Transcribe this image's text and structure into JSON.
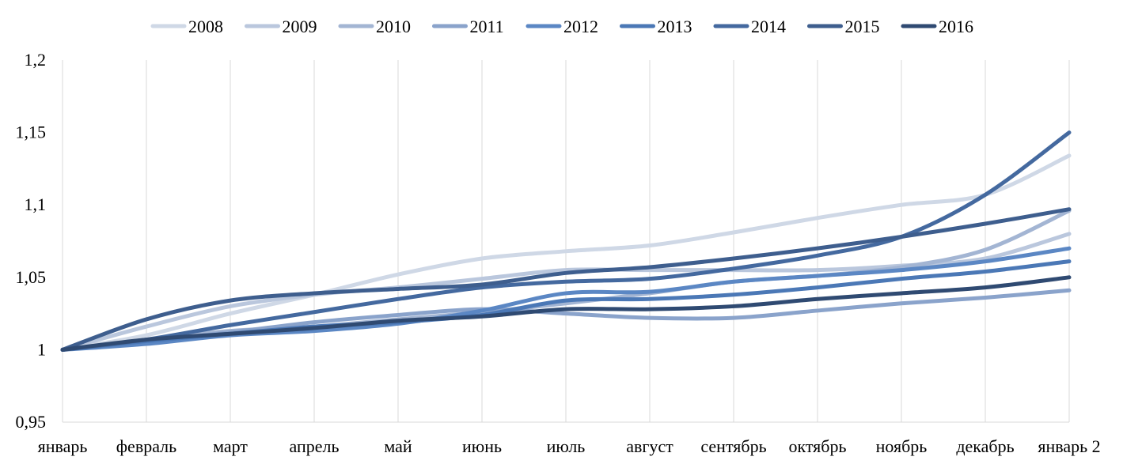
{
  "chart_data": {
    "type": "line",
    "title": "",
    "xlabel": "",
    "ylabel": "",
    "ylim": [
      0.95,
      1.2
    ],
    "yticks": [
      "0,95",
      "1",
      "1,05",
      "1,1",
      "1,15",
      "1,2"
    ],
    "ytick_values": [
      0.95,
      1.0,
      1.05,
      1.1,
      1.15,
      1.2
    ],
    "grid": "vertical",
    "legend": "top",
    "categories": [
      "январь",
      "февраль",
      "март",
      "апрель",
      "май",
      "июнь",
      "июль",
      "август",
      "сентябрь",
      "октябрь",
      "ноябрь",
      "декабрь",
      "январь 2"
    ],
    "series": [
      {
        "name": "2008",
        "color": "#cfd8e6",
        "values": [
          1.0,
          1.01,
          1.025,
          1.038,
          1.052,
          1.063,
          1.068,
          1.072,
          1.081,
          1.091,
          1.1,
          1.107,
          1.134
        ]
      },
      {
        "name": "2009",
        "color": "#bac7dd",
        "values": [
          1.0,
          1.016,
          1.03,
          1.038,
          1.043,
          1.049,
          1.055,
          1.055,
          1.055,
          1.055,
          1.058,
          1.063,
          1.08
        ]
      },
      {
        "name": "2010",
        "color": "#a3b5d3",
        "values": [
          1.0,
          1.007,
          1.013,
          1.016,
          1.021,
          1.026,
          1.032,
          1.039,
          1.047,
          1.051,
          1.057,
          1.069,
          1.096
        ]
      },
      {
        "name": "2011",
        "color": "#8aa3cb",
        "values": [
          1.0,
          1.006,
          1.012,
          1.019,
          1.024,
          1.028,
          1.025,
          1.022,
          1.022,
          1.027,
          1.032,
          1.036,
          1.041
        ]
      },
      {
        "name": "2012",
        "color": "#5b87c4",
        "values": [
          1.0,
          1.004,
          1.01,
          1.013,
          1.018,
          1.027,
          1.039,
          1.04,
          1.047,
          1.051,
          1.055,
          1.061,
          1.07
        ]
      },
      {
        "name": "2013",
        "color": "#4b78b6",
        "values": [
          1.0,
          1.006,
          1.011,
          1.016,
          1.019,
          1.024,
          1.034,
          1.035,
          1.038,
          1.043,
          1.049,
          1.054,
          1.061
        ]
      },
      {
        "name": "2014",
        "color": "#44699f",
        "values": [
          1.0,
          1.007,
          1.017,
          1.026,
          1.035,
          1.043,
          1.047,
          1.049,
          1.056,
          1.065,
          1.078,
          1.107,
          1.15
        ]
      },
      {
        "name": "2015",
        "color": "#3e5e8e",
        "values": [
          1.0,
          1.021,
          1.034,
          1.039,
          1.042,
          1.045,
          1.053,
          1.057,
          1.063,
          1.07,
          1.078,
          1.087,
          1.097
        ]
      },
      {
        "name": "2016",
        "color": "#2f4a72",
        "values": [
          1.0,
          1.007,
          1.011,
          1.015,
          1.02,
          1.023,
          1.028,
          1.028,
          1.03,
          1.035,
          1.039,
          1.043,
          1.05
        ]
      }
    ]
  }
}
